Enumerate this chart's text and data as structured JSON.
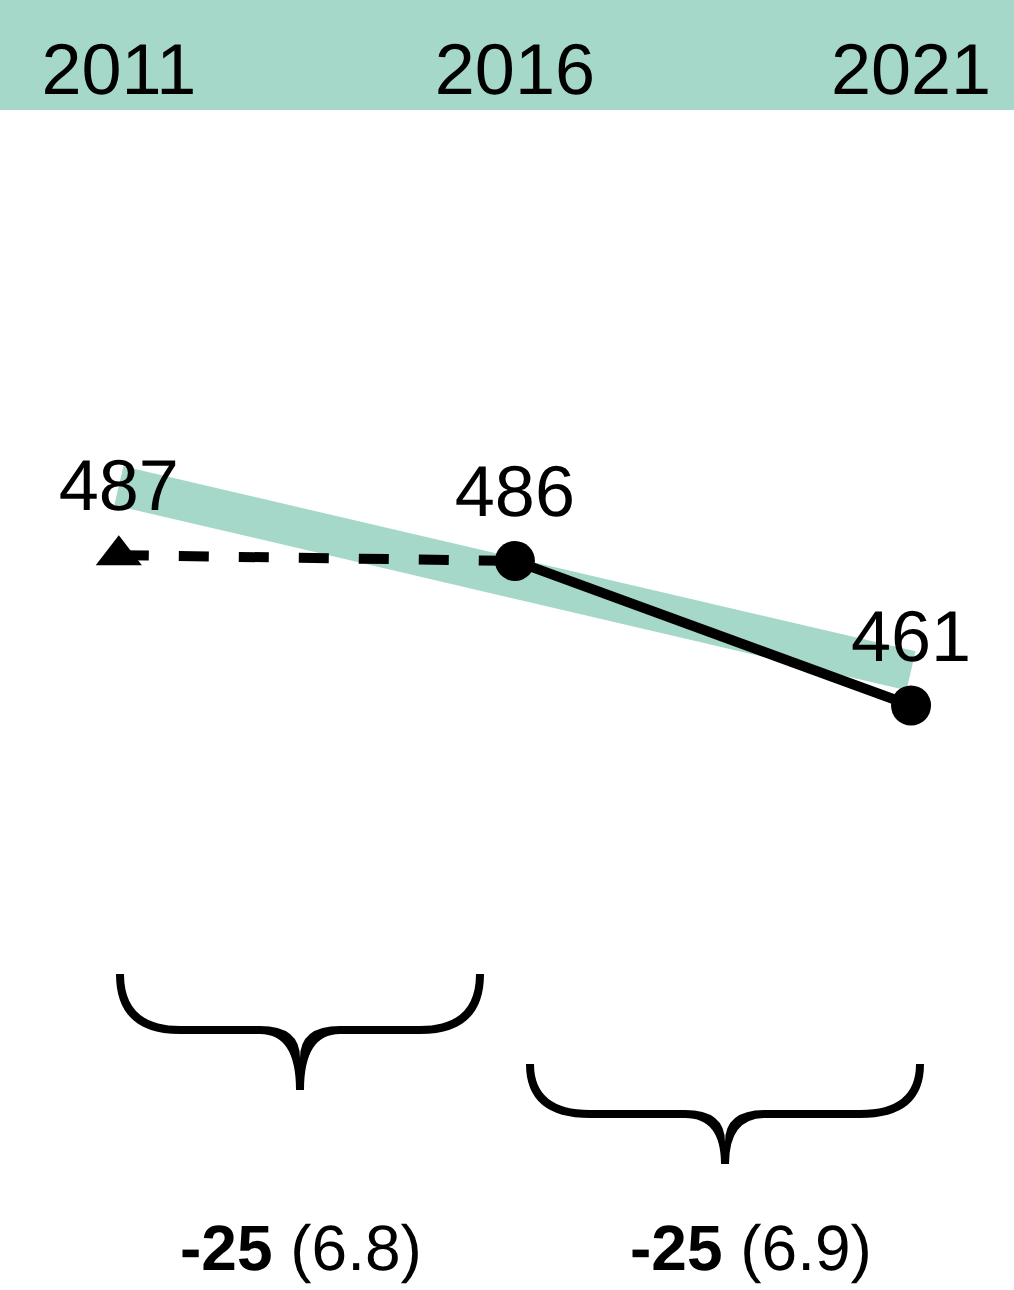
{
  "chart_data": {
    "type": "line",
    "x": [
      2011,
      2016,
      2021
    ],
    "xlim": [
      2009.5,
      2022.3
    ],
    "xticks": [
      2011,
      2016,
      2021
    ],
    "tick_labels": "x",
    "grid": false,
    "series": [
      {
        "type": "line",
        "x": [
          2011,
          2021
        ],
        "color": "#a6d8c9",
        "values": [
          499,
          467
        ]
      },
      {
        "color": "#000000",
        "values": [
          487,
          486,
          null
        ],
        "value_labels": [
          "487",
          null,
          null
        ],
        "marker": "triangle",
        "line_style": "dashed"
      },
      {
        "color": "#000000",
        "values": [
          null,
          486,
          461
        ],
        "value_labels": [
          null,
          "486",
          "461"
        ],
        "marker": "circle",
        "line_style": "solid"
      }
    ],
    "annotations": [
      "-25 (6.8)",
      "-25 (6.9)"
    ]
  }
}
